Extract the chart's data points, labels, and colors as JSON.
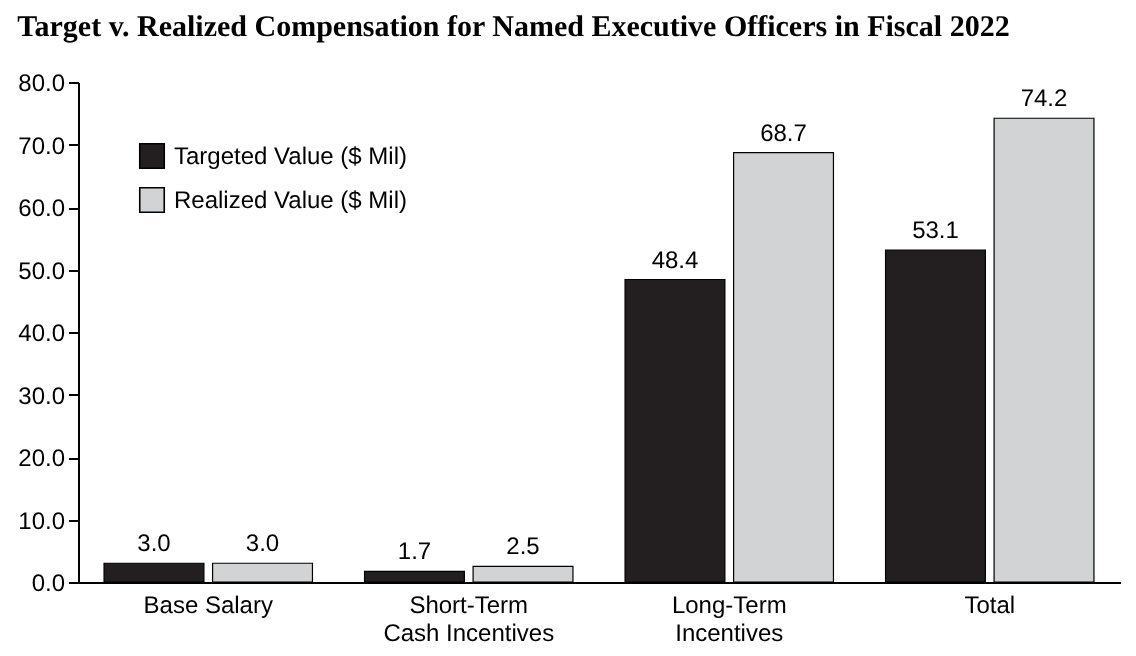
{
  "chart_data": {
    "type": "bar",
    "title": "Target v. Realized Compensation for Named Executive Officers in Fiscal 2022",
    "categories": [
      "Base Salary",
      "Short-Term Cash Incentives",
      "Long-Term Incentives",
      "Total"
    ],
    "series": [
      {
        "name": "Targeted Value ($ Mil)",
        "color": "#231f20",
        "values": [
          3.0,
          1.7,
          48.4,
          53.1
        ],
        "value_labels": [
          "3.0",
          "1.7",
          "48.4",
          "53.1"
        ]
      },
      {
        "name": "Realized Value ($ Mil)",
        "color": "#d1d3d4",
        "values": [
          3.0,
          2.5,
          68.7,
          74.2
        ],
        "value_labels": [
          "3.0",
          "2.5",
          "68.7",
          "74.2"
        ]
      }
    ],
    "ylim": [
      0,
      80
    ],
    "yticks": [
      {
        "value": 0,
        "label": "0.0"
      },
      {
        "value": 10,
        "label": "10.0"
      },
      {
        "value": 20,
        "label": "20.0"
      },
      {
        "value": 30,
        "label": "30.0"
      },
      {
        "value": 40,
        "label": "40.0"
      },
      {
        "value": 50,
        "label": "50.0"
      },
      {
        "value": 60,
        "label": "60.0"
      },
      {
        "value": 70,
        "label": "70.0"
      },
      {
        "value": 80,
        "label": "80.0"
      }
    ],
    "grid": false,
    "legend": "top left"
  }
}
